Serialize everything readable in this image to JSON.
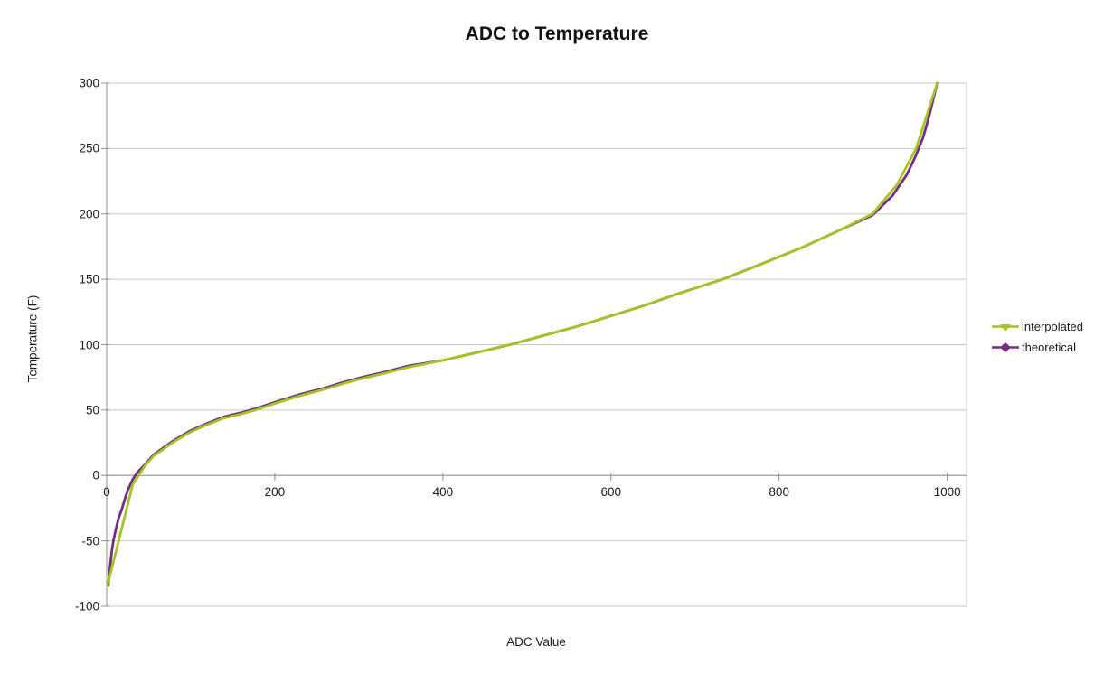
{
  "chart_data": {
    "type": "line",
    "title": "ADC to Temperature",
    "xlabel": "ADC Value",
    "ylabel": "Temperature (F)",
    "xlim": [
      0,
      1023
    ],
    "ylim": [
      -100,
      300
    ],
    "x_ticks": [
      0,
      200,
      400,
      600,
      800,
      1000
    ],
    "y_ticks": [
      -100,
      -50,
      0,
      50,
      100,
      150,
      200,
      250,
      300
    ],
    "grid": "horizontal-only",
    "background": "#ffffff",
    "grid_color": "#c8c8c8",
    "axis_color": "#919191",
    "text_color": "#1a1a1a",
    "legend_position": "right",
    "series": [
      {
        "name": "theoretical",
        "color": "#762e80",
        "marker": "diamond",
        "points": [
          [
            2,
            -84
          ],
          [
            4,
            -70
          ],
          [
            6,
            -58
          ],
          [
            8,
            -50
          ],
          [
            11,
            -41
          ],
          [
            14,
            -33
          ],
          [
            18,
            -26
          ],
          [
            22,
            -17
          ],
          [
            26,
            -10
          ],
          [
            31,
            -3
          ],
          [
            36,
            2
          ],
          [
            45,
            8
          ],
          [
            56,
            16
          ],
          [
            78,
            26
          ],
          [
            99,
            34
          ],
          [
            120,
            40
          ],
          [
            140,
            45
          ],
          [
            160,
            48
          ],
          [
            177,
            51
          ],
          [
            200,
            56
          ],
          [
            230,
            62
          ],
          [
            260,
            67
          ],
          [
            280,
            71
          ],
          [
            303,
            75
          ],
          [
            330,
            79
          ],
          [
            360,
            84
          ],
          [
            400,
            88
          ],
          [
            440,
            94
          ],
          [
            480,
            100
          ],
          [
            520,
            107
          ],
          [
            560,
            114
          ],
          [
            600,
            122
          ],
          [
            640,
            130
          ],
          [
            680,
            139
          ],
          [
            733,
            150
          ],
          [
            780,
            162
          ],
          [
            830,
            175
          ],
          [
            870,
            187
          ],
          [
            911,
            199
          ],
          [
            935,
            214
          ],
          [
            952,
            230
          ],
          [
            963,
            245
          ],
          [
            971,
            258
          ],
          [
            977,
            271
          ],
          [
            982,
            284
          ],
          [
            985,
            292
          ],
          [
            988,
            300
          ]
        ]
      },
      {
        "name": "interpolated",
        "color": "#a5c422",
        "marker": "triangle-down",
        "points": [
          [
            1,
            -84
          ],
          [
            31,
            -7
          ],
          [
            45,
            7
          ],
          [
            56,
            15
          ],
          [
            78,
            25
          ],
          [
            99,
            33
          ],
          [
            120,
            39
          ],
          [
            140,
            44
          ],
          [
            160,
            47
          ],
          [
            177,
            50
          ],
          [
            200,
            55
          ],
          [
            230,
            61
          ],
          [
            260,
            66
          ],
          [
            280,
            70
          ],
          [
            303,
            74
          ],
          [
            330,
            78
          ],
          [
            360,
            83
          ],
          [
            400,
            88
          ],
          [
            440,
            94
          ],
          [
            480,
            100
          ],
          [
            520,
            107
          ],
          [
            560,
            114
          ],
          [
            600,
            122
          ],
          [
            640,
            130
          ],
          [
            680,
            139
          ],
          [
            733,
            150
          ],
          [
            780,
            162
          ],
          [
            830,
            175
          ],
          [
            870,
            187
          ],
          [
            911,
            200
          ],
          [
            940,
            222
          ],
          [
            963,
            250
          ],
          [
            988,
            300
          ]
        ]
      }
    ],
    "legend_order": [
      "interpolated",
      "theoretical"
    ]
  }
}
